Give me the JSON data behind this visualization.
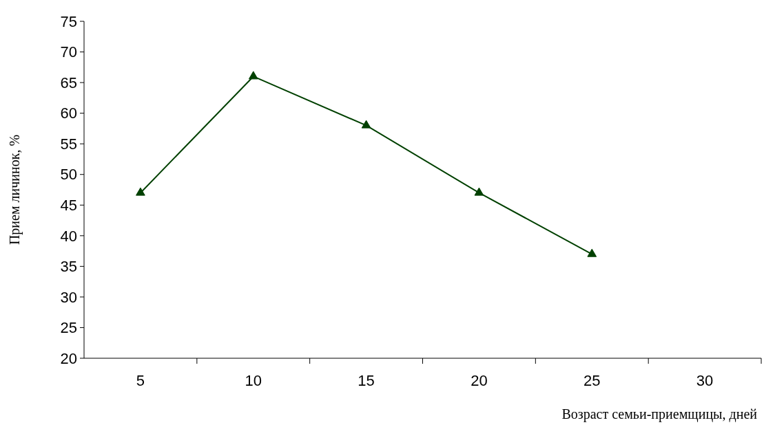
{
  "chart_data": {
    "type": "line",
    "xlabel": "Возраст семьи-приемщицы, дней",
    "ylabel": "Прием личинок, %",
    "categories": [
      "5",
      "10",
      "15",
      "20",
      "25",
      "30"
    ],
    "series": [
      {
        "color": "#004000",
        "values": [
          47,
          66,
          58,
          47,
          37,
          null
        ]
      }
    ],
    "ylim": [
      20,
      75
    ],
    "yticks": [
      20,
      25,
      30,
      35,
      40,
      45,
      50,
      55,
      60,
      65,
      70,
      75
    ],
    "marker": "triangle",
    "line_style": "solid"
  }
}
